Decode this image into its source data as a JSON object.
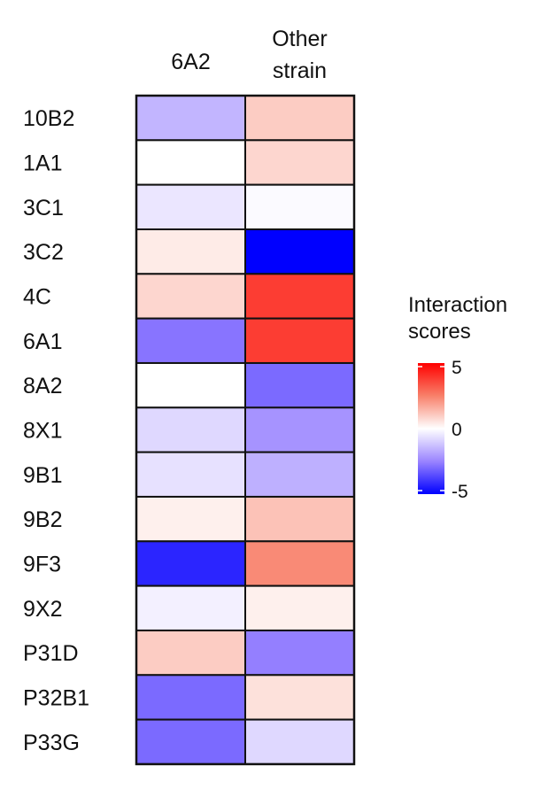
{
  "chart_data": {
    "type": "heatmap",
    "title": "",
    "columns": [
      "6A2",
      "Other strain"
    ],
    "column_label_lines": [
      [
        "6A2"
      ],
      [
        "Other",
        "strain"
      ]
    ],
    "rows": [
      "10B2",
      "1A1",
      "3C1",
      "3C2",
      "4C",
      "6A1",
      "8A2",
      "8X1",
      "9B1",
      "9B2",
      "9F3",
      "9X2",
      "P31D",
      "P32B1",
      "P33G"
    ],
    "values": [
      [
        -1.5,
        1.0
      ],
      [
        0.0,
        0.8
      ],
      [
        -0.5,
        -0.1
      ],
      [
        0.4,
        -5.0
      ],
      [
        0.8,
        3.8
      ],
      [
        -2.8,
        3.8
      ],
      [
        0.0,
        -3.0
      ],
      [
        -0.8,
        -2.2
      ],
      [
        -0.6,
        -1.6
      ],
      [
        0.3,
        1.2
      ],
      [
        -4.3,
        2.3
      ],
      [
        -0.3,
        0.3
      ],
      [
        1.0,
        -2.6
      ],
      [
        -3.0,
        0.6
      ],
      [
        -3.0,
        -0.8
      ]
    ],
    "colorbar": {
      "title_lines": [
        "Interaction",
        "scores"
      ],
      "range": [
        -5,
        5
      ],
      "ticks": [
        "5",
        "0",
        "-5"
      ],
      "tick_values": [
        5,
        0,
        -5
      ],
      "low_color": "#0000ff",
      "mid_color": "#ffffff",
      "high_color": "#ff0000"
    }
  }
}
